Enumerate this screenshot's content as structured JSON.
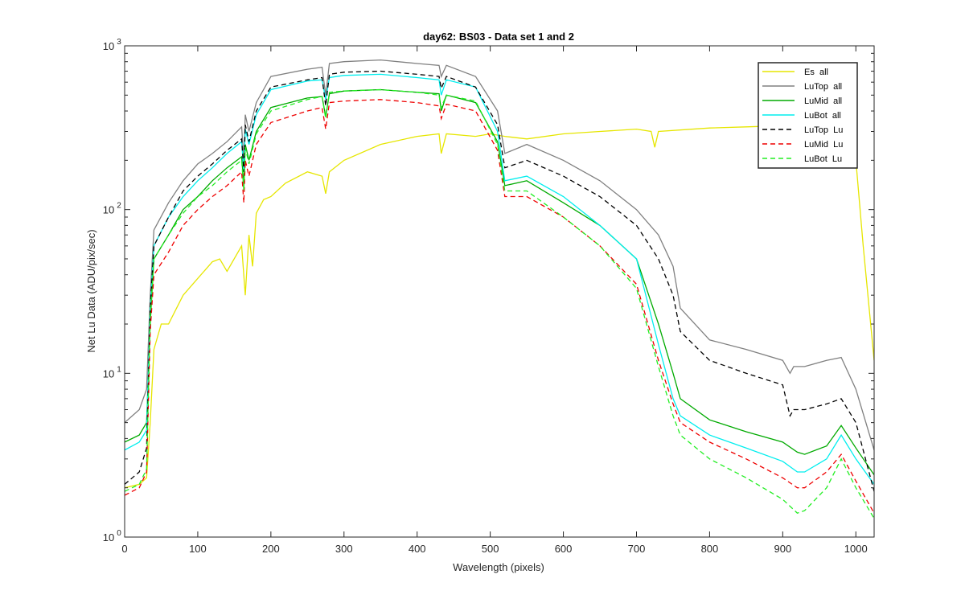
{
  "chart_data": {
    "type": "line",
    "title": "day62: BS03 - Data set 1 and 2",
    "xlabel": "Wavelength (pixels)",
    "ylabel": "Net Lu Data (ADU/pix/sec)",
    "xlim": [
      0,
      1025
    ],
    "ylim": [
      1,
      1000
    ],
    "yscale": "log",
    "grid": false,
    "legend_position": "top-right",
    "x_ticks": [
      0,
      100,
      200,
      300,
      400,
      500,
      600,
      700,
      800,
      900,
      1000
    ],
    "x_tick_labels": [
      "0",
      "100",
      "200",
      "300",
      "400",
      "500",
      "600",
      "700",
      "800",
      "900",
      "1000"
    ],
    "y_ticks": [
      1,
      10,
      100,
      1000
    ],
    "y_tick_labels": [
      {
        "base": "10",
        "exp": "0"
      },
      {
        "base": "10",
        "exp": "1"
      },
      {
        "base": "10",
        "exp": "2"
      },
      {
        "base": "10",
        "exp": "3"
      }
    ],
    "series": [
      {
        "name": "Es  all",
        "color": "#e6e600",
        "dash": "solid",
        "x": [
          0,
          20,
          30,
          35,
          40,
          50,
          60,
          80,
          100,
          120,
          130,
          140,
          160,
          165,
          170,
          175,
          180,
          190,
          200,
          220,
          250,
          270,
          275,
          280,
          300,
          350,
          400,
          430,
          433,
          440,
          480,
          500,
          520,
          550,
          600,
          650,
          700,
          720,
          725,
          730,
          800,
          850,
          900,
          950,
          980,
          990,
          1000,
          1010,
          1025
        ],
        "y": [
          2.0,
          2.1,
          2.3,
          5,
          14,
          20,
          20,
          30,
          38,
          48,
          50,
          42,
          60,
          30,
          70,
          45,
          95,
          115,
          120,
          145,
          170,
          160,
          125,
          170,
          200,
          250,
          280,
          290,
          220,
          290,
          280,
          290,
          280,
          270,
          290,
          300,
          310,
          300,
          240,
          300,
          315,
          320,
          325,
          330,
          320,
          300,
          200,
          60,
          12
        ]
      },
      {
        "name": "LuTop  all",
        "color": "#808080",
        "dash": "solid",
        "x": [
          0,
          20,
          30,
          35,
          40,
          60,
          80,
          100,
          120,
          140,
          160,
          163,
          165,
          170,
          180,
          200,
          250,
          270,
          275,
          280,
          300,
          350,
          400,
          430,
          433,
          440,
          480,
          510,
          520,
          550,
          600,
          650,
          700,
          730,
          750,
          760,
          800,
          850,
          900,
          910,
          915,
          930,
          960,
          980,
          1000,
          1025
        ],
        "y": [
          5,
          6,
          8,
          30,
          75,
          110,
          150,
          190,
          220,
          260,
          320,
          200,
          380,
          300,
          450,
          650,
          720,
          740,
          500,
          780,
          800,
          820,
          780,
          760,
          650,
          760,
          650,
          400,
          220,
          250,
          200,
          150,
          100,
          70,
          45,
          25,
          16,
          14,
          12,
          10,
          11,
          11,
          12,
          12.5,
          8,
          3.4
        ]
      },
      {
        "name": "LuMid  all",
        "color": "#00aa00",
        "dash": "solid",
        "x": [
          0,
          20,
          30,
          35,
          40,
          60,
          80,
          100,
          120,
          140,
          160,
          163,
          165,
          170,
          180,
          200,
          250,
          270,
          275,
          280,
          300,
          350,
          400,
          430,
          433,
          440,
          480,
          510,
          520,
          550,
          600,
          650,
          700,
          730,
          750,
          760,
          800,
          850,
          900,
          920,
          930,
          960,
          980,
          1000,
          1025
        ],
        "y": [
          3.8,
          4.2,
          5,
          20,
          50,
          70,
          100,
          120,
          150,
          180,
          210,
          140,
          250,
          200,
          300,
          420,
          480,
          490,
          370,
          510,
          530,
          540,
          520,
          510,
          400,
          500,
          450,
          260,
          140,
          150,
          110,
          80,
          50,
          20,
          10,
          7,
          5.2,
          4.4,
          3.8,
          3.3,
          3.2,
          3.6,
          4.8,
          3.5,
          2.4
        ]
      },
      {
        "name": "LuBot  all",
        "color": "#00eeee",
        "dash": "solid",
        "x": [
          0,
          20,
          30,
          35,
          40,
          60,
          80,
          100,
          120,
          140,
          160,
          163,
          165,
          170,
          180,
          200,
          250,
          270,
          275,
          280,
          300,
          350,
          400,
          430,
          433,
          440,
          480,
          510,
          520,
          550,
          600,
          650,
          700,
          730,
          750,
          760,
          800,
          850,
          900,
          920,
          930,
          960,
          980,
          1000,
          1025
        ],
        "y": [
          3.4,
          3.8,
          4.5,
          25,
          60,
          90,
          120,
          150,
          180,
          220,
          260,
          170,
          310,
          250,
          380,
          540,
          610,
          620,
          470,
          640,
          660,
          670,
          640,
          620,
          500,
          620,
          560,
          300,
          150,
          160,
          120,
          80,
          50,
          15,
          7,
          5.5,
          4.2,
          3.5,
          2.9,
          2.5,
          2.5,
          3.0,
          4.2,
          3.0,
          2.1
        ]
      },
      {
        "name": "LuTop  Lu",
        "color": "#000000",
        "dash": "dashed",
        "x": [
          0,
          20,
          30,
          35,
          40,
          60,
          80,
          100,
          120,
          140,
          160,
          163,
          165,
          170,
          180,
          200,
          250,
          270,
          275,
          280,
          300,
          350,
          400,
          430,
          433,
          440,
          480,
          510,
          520,
          550,
          600,
          650,
          700,
          730,
          750,
          760,
          800,
          850,
          900,
          910,
          915,
          930,
          960,
          980,
          1000,
          1025
        ],
        "y": [
          2.1,
          2.5,
          3.5,
          25,
          60,
          90,
          130,
          160,
          190,
          230,
          270,
          170,
          330,
          260,
          400,
          560,
          620,
          640,
          430,
          670,
          690,
          700,
          670,
          650,
          550,
          650,
          560,
          330,
          180,
          200,
          160,
          120,
          80,
          50,
          30,
          18,
          12,
          10,
          8.5,
          5.5,
          6,
          6,
          6.5,
          7,
          5,
          1.9
        ]
      },
      {
        "name": "LuMid  Lu",
        "color": "#ee0000",
        "dash": "dashed",
        "x": [
          0,
          20,
          30,
          35,
          40,
          60,
          80,
          100,
          120,
          140,
          160,
          163,
          165,
          170,
          180,
          200,
          250,
          270,
          275,
          280,
          300,
          350,
          400,
          430,
          433,
          440,
          480,
          510,
          520,
          550,
          600,
          650,
          700,
          730,
          750,
          760,
          800,
          850,
          900,
          920,
          930,
          960,
          980,
          1000,
          1025
        ],
        "y": [
          1.8,
          2.0,
          2.5,
          18,
          40,
          55,
          80,
          100,
          120,
          140,
          170,
          110,
          200,
          160,
          250,
          340,
          400,
          420,
          310,
          450,
          460,
          470,
          450,
          430,
          360,
          440,
          400,
          230,
          120,
          120,
          90,
          60,
          35,
          12,
          6.5,
          5,
          3.8,
          3.0,
          2.3,
          2.0,
          2.0,
          2.5,
          3.2,
          2.2,
          1.4
        ]
      },
      {
        "name": "LuBot  Lu",
        "color": "#22ee22",
        "dash": "dashed",
        "x": [
          0,
          20,
          30,
          35,
          40,
          60,
          80,
          100,
          120,
          140,
          160,
          163,
          165,
          170,
          180,
          200,
          250,
          270,
          275,
          280,
          300,
          350,
          400,
          430,
          433,
          440,
          480,
          510,
          520,
          550,
          600,
          650,
          700,
          730,
          750,
          760,
          800,
          850,
          900,
          920,
          930,
          960,
          980,
          1000,
          1025
        ],
        "y": [
          1.9,
          2.1,
          2.6,
          22,
          50,
          70,
          95,
          120,
          140,
          170,
          200,
          130,
          240,
          190,
          290,
          400,
          470,
          490,
          360,
          520,
          530,
          540,
          520,
          500,
          420,
          500,
          460,
          250,
          130,
          130,
          90,
          60,
          33,
          11,
          5.5,
          4.2,
          3.0,
          2.3,
          1.7,
          1.4,
          1.45,
          2.0,
          3.0,
          2.0,
          1.3
        ]
      }
    ]
  }
}
